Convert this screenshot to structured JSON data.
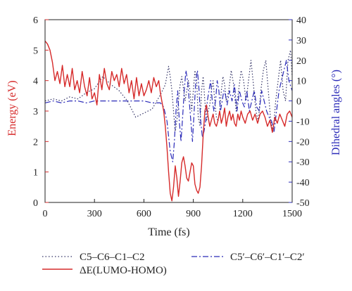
{
  "chart_data": {
    "type": "line",
    "xlabel": "Time (fs)",
    "ylabel_left": "Energy (eV)",
    "ylabel_right": "Dihedral angles (°)",
    "xlim": [
      0,
      1500
    ],
    "ylim_left": [
      0,
      6
    ],
    "ylim_right": [
      -50,
      40
    ],
    "x_ticks": [
      0,
      300,
      600,
      900,
      1200,
      1500
    ],
    "y_left_ticks": [
      0,
      1,
      2,
      3,
      4,
      5,
      6
    ],
    "y_right_ticks": [
      -50,
      -40,
      -30,
      -20,
      -10,
      0,
      10,
      20,
      30,
      40
    ],
    "grid": false,
    "legend_placement": "bottom",
    "colors": {
      "left_axis": "#d62a2a",
      "right_axis": "#2a2ab8",
      "frame": "#222222"
    },
    "legend": {
      "dotted": "C5–C6–C1–C2",
      "dashdot": "C5′–C6′–C1′–C2′",
      "solid": "ΔE(LUMO-HOMO)"
    },
    "series": [
      {
        "name": "ΔE(LUMO-HOMO)",
        "axis": "left",
        "color": "#d62a2a",
        "style": "solid",
        "x": [
          0,
          15,
          30,
          45,
          60,
          75,
          90,
          105,
          120,
          135,
          150,
          165,
          180,
          195,
          210,
          225,
          240,
          255,
          270,
          285,
          300,
          315,
          330,
          345,
          360,
          375,
          390,
          405,
          420,
          435,
          450,
          465,
          480,
          495,
          510,
          525,
          540,
          555,
          570,
          585,
          600,
          615,
          630,
          645,
          660,
          675,
          690,
          700,
          710,
          720,
          730,
          740,
          750,
          760,
          770,
          780,
          790,
          800,
          810,
          820,
          830,
          840,
          850,
          860,
          870,
          880,
          890,
          900,
          910,
          920,
          930,
          940,
          950,
          960,
          970,
          980,
          990,
          1000,
          1010,
          1020,
          1030,
          1040,
          1050,
          1060,
          1070,
          1080,
          1090,
          1100,
          1110,
          1120,
          1130,
          1140,
          1150,
          1160,
          1170,
          1180,
          1190,
          1200,
          1215,
          1230,
          1245,
          1260,
          1275,
          1290,
          1305,
          1320,
          1335,
          1350,
          1365,
          1380,
          1395,
          1410,
          1425,
          1440,
          1455,
          1470,
          1485,
          1500
        ],
        "y": [
          5.3,
          5.2,
          5.0,
          4.6,
          4.0,
          4.3,
          3.9,
          4.5,
          3.8,
          4.2,
          3.8,
          4.4,
          3.7,
          4.0,
          3.6,
          4.3,
          3.8,
          3.5,
          4.1,
          3.4,
          3.6,
          3.2,
          4.2,
          3.7,
          4.4,
          3.9,
          3.7,
          4.3,
          4.0,
          4.2,
          3.8,
          4.4,
          3.9,
          4.2,
          3.6,
          4.0,
          3.4,
          4.1,
          3.5,
          3.9,
          3.5,
          3.7,
          4.0,
          3.6,
          4.1,
          3.8,
          4.0,
          3.6,
          3.3,
          3.0,
          2.5,
          1.8,
          1.0,
          0.3,
          0.05,
          0.5,
          1.2,
          0.8,
          0.2,
          0.7,
          1.3,
          1.5,
          1.2,
          0.8,
          0.7,
          1.0,
          1.3,
          1.2,
          0.6,
          0.4,
          0.3,
          0.5,
          1.2,
          2.2,
          3.0,
          3.2,
          2.8,
          2.5,
          2.7,
          2.9,
          2.6,
          2.5,
          2.7,
          3.0,
          2.6,
          2.8,
          3.1,
          2.5,
          2.8,
          3.0,
          2.7,
          2.9,
          2.6,
          2.5,
          2.9,
          2.7,
          3.0,
          2.8,
          2.6,
          2.9,
          3.0,
          2.7,
          2.9,
          2.6,
          2.9,
          3.0,
          2.8,
          2.5,
          2.7,
          2.3,
          2.8,
          2.6,
          2.9,
          2.7,
          2.5,
          2.9,
          3.0,
          2.8
        ]
      },
      {
        "name": "C5–C6–C1–C2",
        "axis": "right",
        "color": "#333366",
        "style": "dotted",
        "x": [
          0,
          50,
          100,
          150,
          200,
          250,
          300,
          350,
          400,
          450,
          500,
          550,
          600,
          650,
          700,
          730,
          750,
          760,
          770,
          780,
          790,
          800,
          810,
          820,
          830,
          840,
          850,
          860,
          870,
          880,
          890,
          900,
          910,
          920,
          930,
          940,
          950,
          960,
          970,
          980,
          990,
          1000,
          1010,
          1020,
          1030,
          1040,
          1050,
          1060,
          1070,
          1080,
          1090,
          1100,
          1115,
          1130,
          1145,
          1160,
          1175,
          1190,
          1205,
          1220,
          1235,
          1250,
          1265,
          1280,
          1295,
          1310,
          1325,
          1340,
          1355,
          1370,
          1385,
          1400,
          1415,
          1430,
          1445,
          1460,
          1475,
          1490,
          1500
        ],
        "y": [
          0,
          1,
          0,
          2,
          1,
          4,
          6,
          12,
          8,
          5,
          0,
          -8,
          -6,
          -4,
          3,
          8,
          17,
          12,
          5,
          -5,
          -15,
          -10,
          0,
          8,
          12,
          6,
          0,
          5,
          10,
          5,
          -5,
          5,
          15,
          10,
          -8,
          -12,
          5,
          12,
          0,
          -10,
          -5,
          -2,
          5,
          10,
          0,
          -8,
          -10,
          -5,
          5,
          12,
          8,
          0,
          5,
          15,
          8,
          -5,
          5,
          15,
          10,
          0,
          10,
          20,
          8,
          -5,
          -10,
          5,
          15,
          20,
          5,
          -10,
          -15,
          0,
          10,
          20,
          5,
          0,
          20,
          25,
          12
        ]
      },
      {
        "name": "C5′–C6′–C1′–C2′",
        "axis": "right",
        "color": "#2a2ab8",
        "style": "dashdot",
        "x": [
          0,
          50,
          100,
          150,
          200,
          250,
          300,
          350,
          400,
          450,
          500,
          550,
          600,
          650,
          700,
          720,
          740,
          760,
          775,
          785,
          795,
          805,
          815,
          825,
          835,
          845,
          855,
          865,
          875,
          885,
          895,
          905,
          915,
          925,
          935,
          945,
          955,
          965,
          975,
          985,
          995,
          1005,
          1015,
          1025,
          1035,
          1045,
          1055,
          1065,
          1075,
          1085,
          1095,
          1105,
          1120,
          1135,
          1150,
          1165,
          1180,
          1195,
          1210,
          1225,
          1240,
          1255,
          1270,
          1285,
          1300,
          1315,
          1330,
          1345,
          1360,
          1375,
          1390,
          1405,
          1420,
          1435,
          1450,
          1465,
          1480,
          1500
        ],
        "y": [
          -1,
          0,
          -1,
          0,
          0,
          -1,
          0,
          0,
          0,
          0,
          0,
          0,
          0,
          -1,
          -1,
          -3,
          -10,
          -25,
          -30,
          -20,
          -5,
          5,
          -10,
          -20,
          -8,
          5,
          15,
          10,
          0,
          -10,
          -20,
          -5,
          10,
          15,
          5,
          -10,
          -18,
          -15,
          -10,
          0,
          5,
          10,
          0,
          -5,
          0,
          10,
          5,
          -5,
          0,
          5,
          3,
          -2,
          5,
          0,
          8,
          -5,
          5,
          0,
          -3,
          5,
          -5,
          0,
          5,
          -3,
          -5,
          5,
          0,
          -5,
          -8,
          -10,
          -15,
          -5,
          5,
          10,
          15,
          20,
          10,
          5
        ]
      }
    ]
  }
}
